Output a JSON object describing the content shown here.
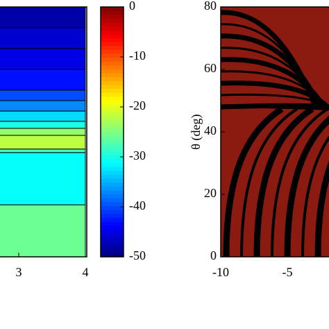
{
  "chart_data": [
    {
      "type": "bands",
      "xlim": [
        2,
        4
      ],
      "xticks": [
        3,
        4
      ],
      "ylim": [
        0,
        1
      ],
      "band_edges": [
        1,
        0.917,
        0.833,
        0.75,
        0.667,
        0.625,
        0.583,
        0.542,
        0.514,
        0.486,
        0.431,
        0.417,
        0.208,
        0
      ],
      "values": [
        -48,
        -46,
        -45,
        -43,
        -40,
        -37,
        -33,
        -30,
        -24,
        -22,
        -28,
        -31,
        -26
      ],
      "colormap": "jet",
      "clim": [
        -50,
        0
      ],
      "cticks": [
        0,
        -10,
        -20,
        -30,
        -40,
        -50
      ]
    },
    {
      "type": "image",
      "ylabel": "θ (deg)",
      "xlim": [
        -10,
        0
      ],
      "xticks": [
        -10,
        -5
      ],
      "ylim": [
        0,
        80
      ],
      "yticks": [
        0,
        20,
        40,
        60,
        80
      ],
      "color": "#8b1a10"
    }
  ]
}
